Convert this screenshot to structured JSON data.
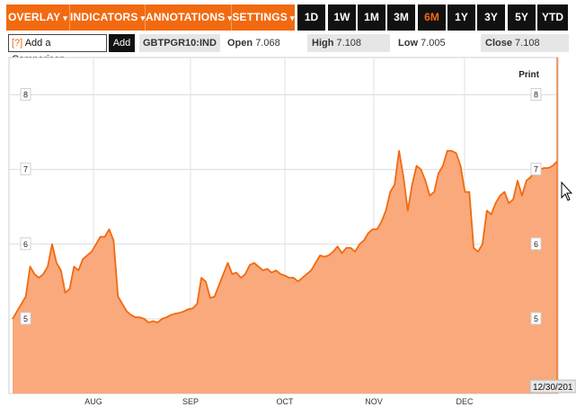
{
  "toolbar": {
    "menus": [
      {
        "label": "OVERLAY",
        "caret": "▾"
      },
      {
        "label": "INDICATORS",
        "caret": "▾"
      },
      {
        "label": "ANNOTATIONS",
        "caret": "▾"
      },
      {
        "label": "SETTINGS",
        "caret": "▾"
      }
    ],
    "ranges": [
      "1D",
      "1W",
      "1M",
      "3M",
      "6M",
      "1Y",
      "3Y",
      "5Y",
      "YTD"
    ],
    "active_range": "6M"
  },
  "quote": {
    "compare_prefix": "[?]",
    "compare_label": "Add a Comparison",
    "add_label": "Add",
    "symbol": "GBTPGR10:IND",
    "open_label": "Open",
    "open_value": "7.068",
    "high_label": "High",
    "high_value": "7.108",
    "low_label": "Low",
    "low_value": "7.005",
    "close_label": "Close",
    "close_value": "7.108"
  },
  "chart_data": {
    "type": "area",
    "print_label": "Print",
    "end_date_label": "12/30/201",
    "x_labels": [
      "AUG",
      "SEP",
      "OCT",
      "NOV",
      "DEC"
    ],
    "y_ticks": [
      5,
      6,
      7,
      8
    ],
    "ylim": [
      4.0,
      8.5
    ],
    "grid": true,
    "color": "#f26a10",
    "fill": "#f9a97b",
    "series": [
      {
        "values": [
          5.0,
          5.1,
          5.2,
          5.3,
          5.7,
          5.6,
          5.55,
          5.6,
          5.7,
          6.0,
          5.75,
          5.65,
          5.35,
          5.4,
          5.7,
          5.65,
          5.8,
          5.85,
          5.9,
          6.0,
          6.1,
          6.1,
          6.2,
          6.05,
          5.3,
          5.2,
          5.1,
          5.05,
          5.02,
          5.02,
          5.0,
          4.95,
          4.97,
          4.95,
          5.0,
          5.02,
          5.05,
          5.07,
          5.08,
          5.1,
          5.13,
          5.14,
          5.2,
          5.55,
          5.5,
          5.28,
          5.3,
          5.45,
          5.6,
          5.75,
          5.6,
          5.62,
          5.55,
          5.6,
          5.72,
          5.75,
          5.7,
          5.65,
          5.67,
          5.62,
          5.65,
          5.6,
          5.58,
          5.55,
          5.55,
          5.5,
          5.55,
          5.6,
          5.65,
          5.75,
          5.85,
          5.83,
          5.85,
          5.9,
          5.97,
          5.88,
          5.95,
          5.95,
          5.9,
          6.0,
          6.05,
          6.15,
          6.2,
          6.2,
          6.3,
          6.45,
          6.7,
          6.8,
          7.25,
          6.9,
          6.45,
          6.8,
          7.05,
          7.0,
          6.85,
          6.65,
          6.7,
          6.95,
          7.05,
          7.25,
          7.25,
          7.22,
          7.05,
          6.7,
          6.7,
          5.95,
          5.9,
          6.0,
          6.45,
          6.4,
          6.55,
          6.65,
          6.7,
          6.55,
          6.6,
          6.85,
          6.65,
          6.85,
          6.9,
          7.0,
          7.0,
          7.02,
          7.02,
          7.05,
          7.108
        ]
      }
    ]
  }
}
